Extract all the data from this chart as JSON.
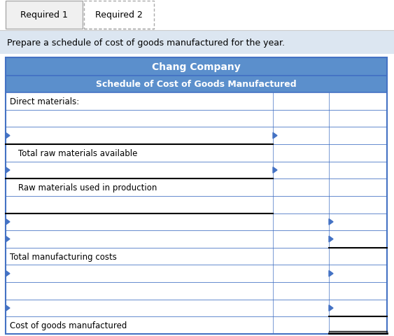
{
  "tab1_label": "Required 1",
  "tab2_label": "Required 2",
  "instruction": "Prepare a schedule of cost of goods manufactured for the year.",
  "title1": "Chang Company",
  "title2": "Schedule of Cost of Goods Manufactured",
  "rows": [
    {
      "label": "Direct materials:",
      "indent": 0,
      "black_top_col1": false,
      "black_top_col2": false,
      "arrow_left": false,
      "arrow_col1": false,
      "arrow_col2": false
    },
    {
      "label": "",
      "indent": 0,
      "black_top_col1": false,
      "black_top_col2": false,
      "arrow_left": false,
      "arrow_col1": false,
      "arrow_col2": false
    },
    {
      "label": "",
      "indent": 0,
      "black_top_col1": false,
      "black_top_col2": false,
      "arrow_left": true,
      "arrow_col1": true,
      "arrow_col2": false
    },
    {
      "label": "   Total raw materials available",
      "indent": 1,
      "black_top_col1": true,
      "black_top_col2": false,
      "arrow_left": false,
      "arrow_col1": false,
      "arrow_col2": false
    },
    {
      "label": "",
      "indent": 0,
      "black_top_col1": false,
      "black_top_col2": false,
      "arrow_left": true,
      "arrow_col1": true,
      "arrow_col2": false
    },
    {
      "label": "   Raw materials used in production",
      "indent": 1,
      "black_top_col1": true,
      "black_top_col2": false,
      "arrow_left": false,
      "arrow_col1": false,
      "arrow_col2": false
    },
    {
      "label": "",
      "indent": 0,
      "black_top_col1": false,
      "black_top_col2": false,
      "arrow_left": false,
      "arrow_col1": false,
      "arrow_col2": false
    },
    {
      "label": "",
      "indent": 0,
      "black_top_col1": true,
      "black_top_col2": false,
      "arrow_left": true,
      "arrow_col1": false,
      "arrow_col2": true
    },
    {
      "label": "",
      "indent": 0,
      "black_top_col1": false,
      "black_top_col2": false,
      "arrow_left": true,
      "arrow_col1": false,
      "arrow_col2": true
    },
    {
      "label": "Total manufacturing costs",
      "indent": 0,
      "black_top_col1": false,
      "black_top_col2": true,
      "arrow_left": false,
      "arrow_col1": false,
      "arrow_col2": false
    },
    {
      "label": "",
      "indent": 0,
      "black_top_col1": false,
      "black_top_col2": false,
      "arrow_left": true,
      "arrow_col1": false,
      "arrow_col2": true
    },
    {
      "label": "",
      "indent": 0,
      "black_top_col1": false,
      "black_top_col2": false,
      "arrow_left": false,
      "arrow_col1": false,
      "arrow_col2": false
    },
    {
      "label": "",
      "indent": 0,
      "black_top_col1": false,
      "black_top_col2": false,
      "arrow_left": true,
      "arrow_col1": false,
      "arrow_col2": true
    },
    {
      "label": "Cost of goods manufactured",
      "indent": 0,
      "black_top_col1": false,
      "black_top_col2": true,
      "arrow_left": false,
      "arrow_col1": false,
      "arrow_col2": false
    }
  ],
  "last_row_double_underline_col2": true,
  "header_bg": "#5B8FCC",
  "header_text_color": "#FFFFFF",
  "instruction_bg": "#DCE6F1",
  "grid_color": "#4472C4",
  "black_color": "#000000",
  "arrow_color": "#4472C4",
  "tab_border_color": "#AAAAAA",
  "fig_w": 5.63,
  "fig_h": 4.81,
  "dpi": 100
}
